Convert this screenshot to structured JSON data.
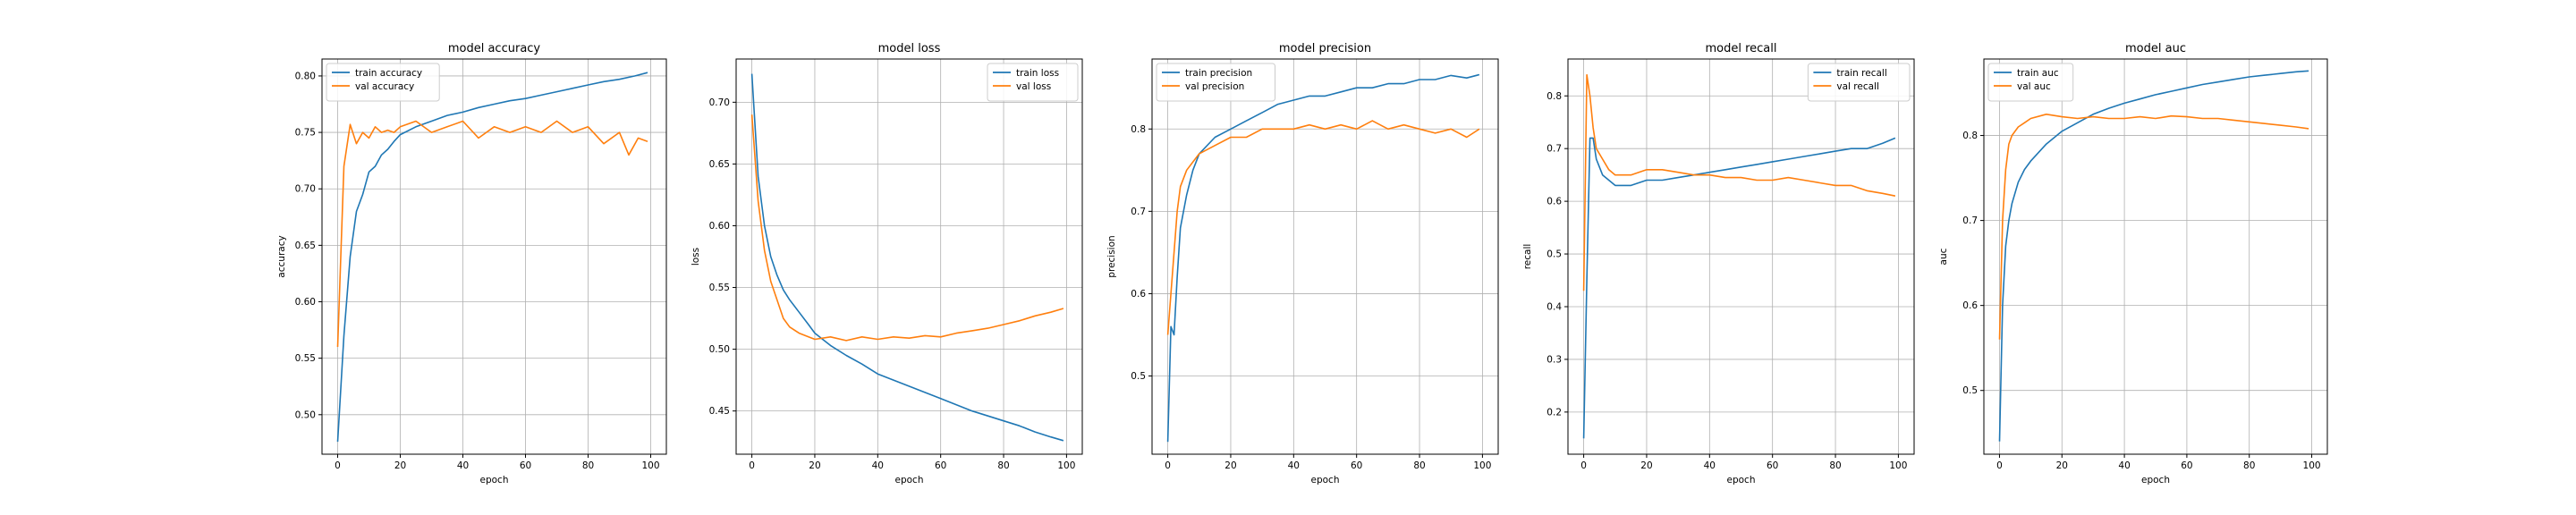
{
  "chart_data": [
    {
      "type": "line",
      "title": "model accuracy",
      "xlabel": "epoch",
      "ylabel": "accuracy",
      "xlim": [
        -5,
        105
      ],
      "ylim": [
        0.465,
        0.815
      ],
      "xticks": [
        0,
        20,
        40,
        60,
        80,
        100
      ],
      "yticks": [
        0.5,
        0.55,
        0.6,
        0.65,
        0.7,
        0.75,
        0.8
      ],
      "ytick_labels": [
        "0.50",
        "0.55",
        "0.60",
        "0.65",
        "0.70",
        "0.75",
        "0.80"
      ],
      "grid": true,
      "legend_position": "upper-left",
      "series": [
        {
          "name": "train accuracy",
          "color": "#1f77b4",
          "x": [
            0,
            2,
            4,
            6,
            8,
            10,
            12,
            14,
            16,
            18,
            20,
            25,
            30,
            35,
            40,
            45,
            50,
            55,
            60,
            65,
            70,
            75,
            80,
            85,
            90,
            95,
            99
          ],
          "values": [
            0.476,
            0.57,
            0.64,
            0.68,
            0.695,
            0.715,
            0.72,
            0.73,
            0.735,
            0.742,
            0.748,
            0.755,
            0.76,
            0.765,
            0.768,
            0.772,
            0.775,
            0.778,
            0.78,
            0.783,
            0.786,
            0.789,
            0.792,
            0.795,
            0.797,
            0.8,
            0.803
          ]
        },
        {
          "name": "val accuracy",
          "color": "#ff7f0e",
          "x": [
            0,
            2,
            4,
            6,
            8,
            10,
            12,
            14,
            16,
            18,
            20,
            25,
            30,
            35,
            40,
            45,
            50,
            55,
            60,
            65,
            70,
            75,
            80,
            85,
            90,
            93,
            96,
            99
          ],
          "values": [
            0.56,
            0.72,
            0.757,
            0.74,
            0.75,
            0.745,
            0.755,
            0.75,
            0.752,
            0.75,
            0.755,
            0.76,
            0.75,
            0.755,
            0.76,
            0.745,
            0.755,
            0.75,
            0.755,
            0.75,
            0.76,
            0.75,
            0.755,
            0.74,
            0.75,
            0.73,
            0.745,
            0.742
          ]
        }
      ]
    },
    {
      "type": "line",
      "title": "model loss",
      "xlabel": "epoch",
      "ylabel": "loss",
      "xlim": [
        -5,
        105
      ],
      "ylim": [
        0.415,
        0.735
      ],
      "xticks": [
        0,
        20,
        40,
        60,
        80,
        100
      ],
      "yticks": [
        0.45,
        0.5,
        0.55,
        0.6,
        0.65,
        0.7
      ],
      "ytick_labels": [
        "0.45",
        "0.50",
        "0.55",
        "0.60",
        "0.65",
        "0.70"
      ],
      "grid": true,
      "legend_position": "upper-right",
      "series": [
        {
          "name": "train loss",
          "color": "#1f77b4",
          "x": [
            0,
            2,
            4,
            6,
            8,
            10,
            12,
            15,
            18,
            20,
            25,
            30,
            35,
            40,
            45,
            50,
            55,
            60,
            65,
            70,
            75,
            80,
            85,
            90,
            95,
            99
          ],
          "values": [
            0.723,
            0.64,
            0.6,
            0.575,
            0.56,
            0.548,
            0.54,
            0.53,
            0.52,
            0.513,
            0.503,
            0.495,
            0.488,
            0.48,
            0.475,
            0.47,
            0.465,
            0.46,
            0.455,
            0.45,
            0.446,
            0.442,
            0.438,
            0.433,
            0.429,
            0.426
          ]
        },
        {
          "name": "val loss",
          "color": "#ff7f0e",
          "x": [
            0,
            2,
            4,
            6,
            8,
            10,
            12,
            15,
            18,
            20,
            25,
            30,
            35,
            40,
            45,
            50,
            55,
            60,
            65,
            70,
            75,
            80,
            85,
            90,
            95,
            99
          ],
          "values": [
            0.69,
            0.62,
            0.58,
            0.555,
            0.54,
            0.525,
            0.518,
            0.513,
            0.51,
            0.508,
            0.51,
            0.507,
            0.51,
            0.508,
            0.51,
            0.509,
            0.511,
            0.51,
            0.513,
            0.515,
            0.517,
            0.52,
            0.523,
            0.527,
            0.53,
            0.533
          ]
        }
      ]
    },
    {
      "type": "line",
      "title": "model precision",
      "xlabel": "epoch",
      "ylabel": "precision",
      "xlim": [
        -5,
        105
      ],
      "ylim": [
        0.405,
        0.885
      ],
      "xticks": [
        0,
        20,
        40,
        60,
        80,
        100
      ],
      "yticks": [
        0.5,
        0.6,
        0.7,
        0.8
      ],
      "ytick_labels": [
        "0.5",
        "0.6",
        "0.7",
        "0.8"
      ],
      "grid": true,
      "legend_position": "upper-left",
      "series": [
        {
          "name": "train precision",
          "color": "#1f77b4",
          "x": [
            0,
            1,
            2,
            3,
            4,
            6,
            8,
            10,
            15,
            20,
            25,
            30,
            35,
            40,
            45,
            50,
            55,
            60,
            65,
            70,
            75,
            80,
            85,
            90,
            95,
            99
          ],
          "values": [
            0.42,
            0.56,
            0.55,
            0.62,
            0.68,
            0.72,
            0.75,
            0.77,
            0.79,
            0.8,
            0.81,
            0.82,
            0.83,
            0.835,
            0.84,
            0.84,
            0.845,
            0.85,
            0.85,
            0.855,
            0.855,
            0.86,
            0.86,
            0.865,
            0.862,
            0.866
          ]
        },
        {
          "name": "val precision",
          "color": "#ff7f0e",
          "x": [
            0,
            1,
            2,
            3,
            4,
            6,
            8,
            10,
            15,
            20,
            25,
            30,
            35,
            40,
            45,
            50,
            55,
            60,
            65,
            70,
            75,
            80,
            85,
            90,
            95,
            99
          ],
          "values": [
            0.55,
            0.6,
            0.65,
            0.7,
            0.73,
            0.75,
            0.76,
            0.77,
            0.78,
            0.79,
            0.79,
            0.8,
            0.8,
            0.8,
            0.805,
            0.8,
            0.805,
            0.8,
            0.81,
            0.8,
            0.805,
            0.8,
            0.795,
            0.8,
            0.79,
            0.8
          ]
        }
      ]
    },
    {
      "type": "line",
      "title": "model recall",
      "xlabel": "epoch",
      "ylabel": "recall",
      "xlim": [
        -5,
        105
      ],
      "ylim": [
        0.12,
        0.87
      ],
      "xticks": [
        0,
        20,
        40,
        60,
        80,
        100
      ],
      "yticks": [
        0.2,
        0.3,
        0.4,
        0.5,
        0.6,
        0.7,
        0.8
      ],
      "ytick_labels": [
        "0.2",
        "0.3",
        "0.4",
        "0.5",
        "0.6",
        "0.7",
        "0.8"
      ],
      "grid": true,
      "legend_position": "upper-right",
      "series": [
        {
          "name": "train recall",
          "color": "#1f77b4",
          "x": [
            0,
            1,
            2,
            3,
            4,
            6,
            8,
            10,
            15,
            20,
            25,
            30,
            35,
            40,
            45,
            50,
            55,
            60,
            65,
            70,
            75,
            80,
            85,
            90,
            95,
            99
          ],
          "values": [
            0.15,
            0.45,
            0.72,
            0.72,
            0.68,
            0.65,
            0.64,
            0.63,
            0.63,
            0.64,
            0.64,
            0.645,
            0.65,
            0.655,
            0.66,
            0.665,
            0.67,
            0.675,
            0.68,
            0.685,
            0.69,
            0.695,
            0.7,
            0.7,
            0.71,
            0.72
          ]
        },
        {
          "name": "val recall",
          "color": "#ff7f0e",
          "x": [
            0,
            1,
            2,
            3,
            4,
            6,
            8,
            10,
            15,
            20,
            25,
            30,
            35,
            40,
            45,
            50,
            55,
            60,
            65,
            70,
            75,
            80,
            85,
            90,
            95,
            99
          ],
          "values": [
            0.43,
            0.84,
            0.8,
            0.74,
            0.7,
            0.68,
            0.66,
            0.65,
            0.65,
            0.66,
            0.66,
            0.655,
            0.65,
            0.65,
            0.645,
            0.645,
            0.64,
            0.64,
            0.645,
            0.64,
            0.635,
            0.63,
            0.63,
            0.62,
            0.615,
            0.61
          ]
        }
      ]
    },
    {
      "type": "line",
      "title": "model auc",
      "xlabel": "epoch",
      "ylabel": "auc",
      "xlim": [
        -5,
        105
      ],
      "ylim": [
        0.425,
        0.89
      ],
      "xticks": [
        0,
        20,
        40,
        60,
        80,
        100
      ],
      "yticks": [
        0.5,
        0.6,
        0.7,
        0.8
      ],
      "ytick_labels": [
        "0.5",
        "0.6",
        "0.7",
        "0.8"
      ],
      "grid": true,
      "legend_position": "upper-left",
      "series": [
        {
          "name": "train auc",
          "color": "#1f77b4",
          "x": [
            0,
            1,
            2,
            3,
            4,
            6,
            8,
            10,
            15,
            20,
            25,
            30,
            35,
            40,
            45,
            50,
            55,
            60,
            65,
            70,
            75,
            80,
            85,
            90,
            95,
            99
          ],
          "values": [
            0.44,
            0.6,
            0.67,
            0.7,
            0.72,
            0.745,
            0.76,
            0.77,
            0.79,
            0.805,
            0.815,
            0.825,
            0.832,
            0.838,
            0.843,
            0.848,
            0.852,
            0.856,
            0.86,
            0.863,
            0.866,
            0.869,
            0.871,
            0.873,
            0.875,
            0.876
          ]
        },
        {
          "name": "val auc",
          "color": "#ff7f0e",
          "x": [
            0,
            1,
            2,
            3,
            4,
            6,
            8,
            10,
            15,
            20,
            25,
            30,
            35,
            40,
            45,
            50,
            55,
            60,
            65,
            70,
            75,
            80,
            85,
            90,
            95,
            99
          ],
          "values": [
            0.56,
            0.7,
            0.76,
            0.79,
            0.8,
            0.81,
            0.815,
            0.82,
            0.825,
            0.822,
            0.82,
            0.822,
            0.82,
            0.82,
            0.822,
            0.82,
            0.823,
            0.822,
            0.82,
            0.82,
            0.818,
            0.816,
            0.814,
            0.812,
            0.81,
            0.808
          ]
        }
      ]
    }
  ]
}
